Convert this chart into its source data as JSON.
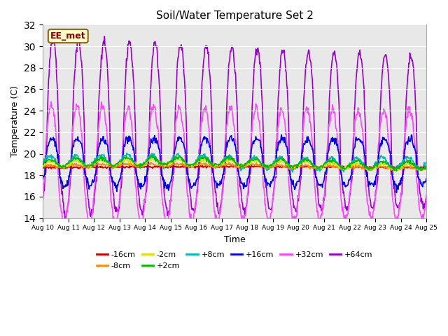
{
  "title": "Soil/Water Temperature Set 2",
  "xlabel": "Time",
  "ylabel": "Temperature (C)",
  "ylim": [
    14,
    32
  ],
  "xlim": [
    0,
    15
  ],
  "x_tick_labels": [
    "Aug 10",
    "Aug 11",
    "Aug 12",
    "Aug 13",
    "Aug 14",
    "Aug 15",
    "Aug 16",
    "Aug 17",
    "Aug 18",
    "Aug 19",
    "Aug 20",
    "Aug 21",
    "Aug 22",
    "Aug 23",
    "Aug 24",
    "Aug 25"
  ],
  "annotation_text": "EE_met",
  "annotation_bg": "#ffffcc",
  "annotation_border": "#8B6914",
  "series": {
    "-16cm": {
      "color": "#cc0000",
      "lw": 1.2
    },
    "-8cm": {
      "color": "#ff8800",
      "lw": 1.2
    },
    "-2cm": {
      "color": "#dddd00",
      "lw": 1.2
    },
    "+2cm": {
      "color": "#00bb00",
      "lw": 1.2
    },
    "+8cm": {
      "color": "#00bbbb",
      "lw": 1.2
    },
    "+16cm": {
      "color": "#0000ee",
      "lw": 1.2
    },
    "+32cm": {
      "color": "#ff44ff",
      "lw": 1.2
    },
    "+64cm": {
      "color": "#9900cc",
      "lw": 1.2
    }
  },
  "plot_bg": "#e8e8e8",
  "grid_color": "#ffffff",
  "yticks": [
    14,
    16,
    18,
    20,
    22,
    24,
    26,
    28,
    30,
    32
  ]
}
